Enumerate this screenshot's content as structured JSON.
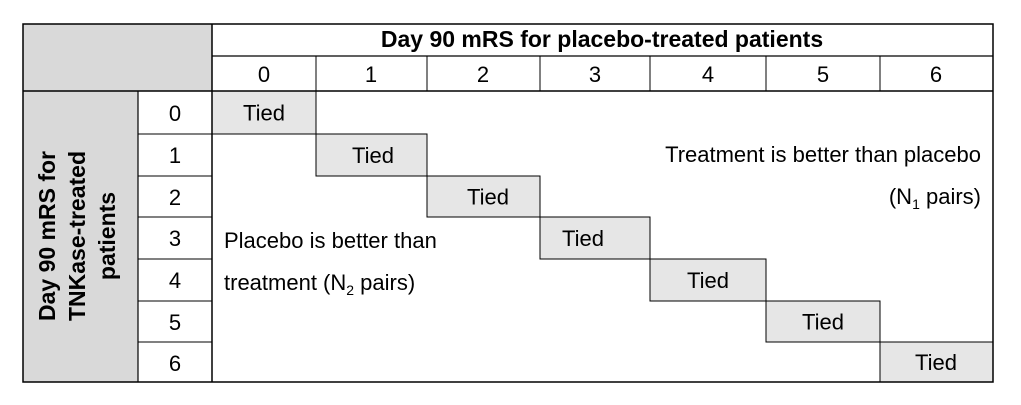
{
  "column_header": "Day 90 mRS for placebo-treated patients",
  "row_header": [
    "Day 90 mRS for",
    "TNKase-treated",
    "patients"
  ],
  "scores": [
    "0",
    "1",
    "2",
    "3",
    "4",
    "5",
    "6"
  ],
  "tied_label": "Tied",
  "upper_region": {
    "line1": "Treatment is better than placebo",
    "line2_prefix": "(N",
    "line2_sub": "1",
    "line2_suffix": " pairs)"
  },
  "lower_region": {
    "line1": "Placebo is better than",
    "line2_prefix": "treatment (N",
    "line2_sub": "2",
    "line2_suffix": " pairs)"
  },
  "colors": {
    "shade": "#d9d9d9",
    "tied_fill": "#e6e6e6",
    "line": "#000000"
  }
}
